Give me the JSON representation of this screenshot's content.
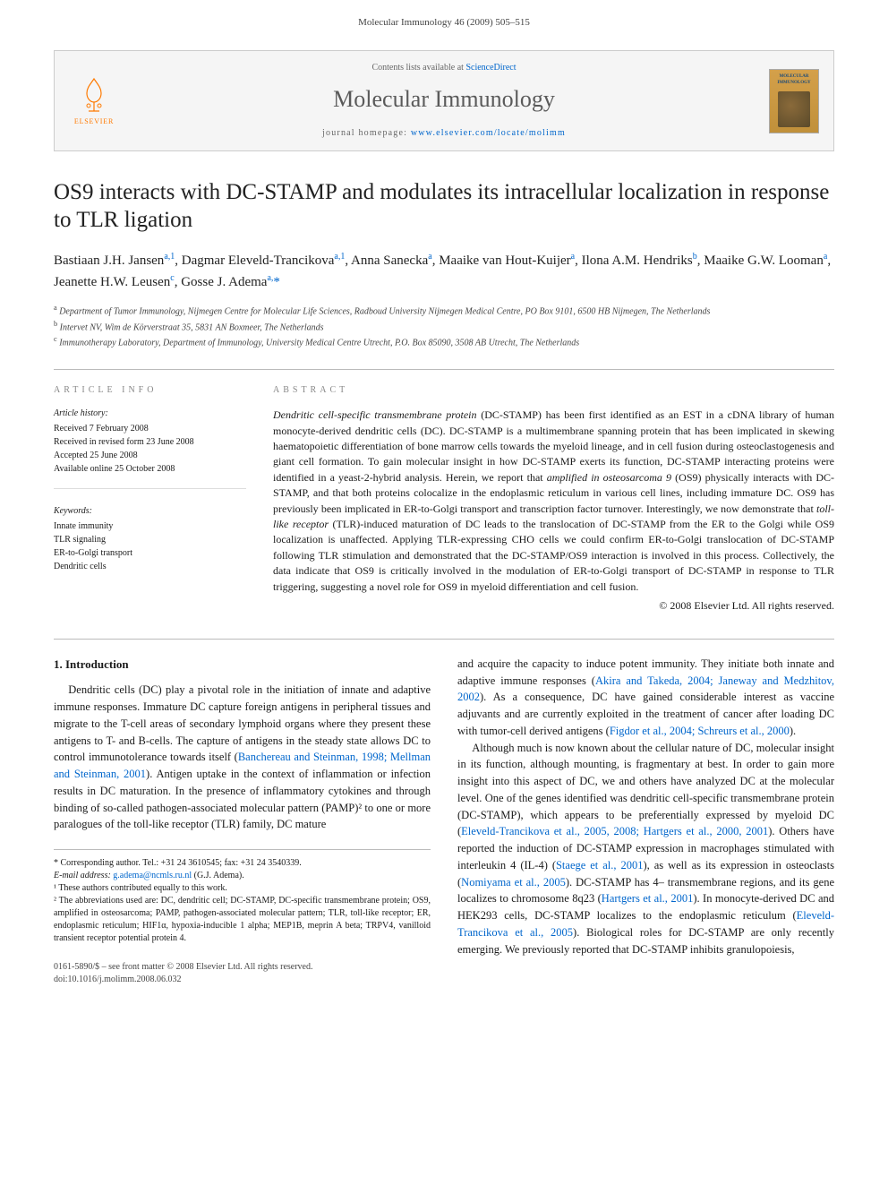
{
  "header": {
    "citation": "Molecular Immunology 46 (2009) 505–515"
  },
  "banner": {
    "contents_prefix": "Contents lists available at ",
    "contents_link": "ScienceDirect",
    "journal_name": "Molecular Immunology",
    "homepage_prefix": "journal homepage: ",
    "homepage_url": "www.elsevier.com/locate/molimm",
    "publisher_label": "ELSEVIER",
    "cover_title": "MOLECULAR IMMUNOLOGY"
  },
  "article": {
    "title": "OS9 interacts with DC-STAMP and modulates its intracellular localization in response to TLR ligation",
    "authors_html": "Bastiaan J.H. Jansen<sup>a,1</sup>, Dagmar Eleveld-Trancikova<sup>a,1</sup>, Anna Sanecka<sup>a</sup>, Maaike van Hout-Kuijer<sup>a</sup>, Ilona A.M. Hendriks<sup>b</sup>, Maaike G.W. Looman<sup>a</sup>, Jeanette H.W. Leusen<sup>c</sup>, Gosse J. Adema<sup>a,</sup><span class=\"star\">*</span>",
    "affiliations": [
      "a Department of Tumor Immunology, Nijmegen Centre for Molecular Life Sciences, Radboud University Nijmegen Medical Centre, PO Box 9101, 6500 HB Nijmegen, The Netherlands",
      "b Intervet NV, Wim de Körverstraat 35, 5831 AN Boxmeer, The Netherlands",
      "c Immunotherapy Laboratory, Department of Immunology, University Medical Centre Utrecht, P.O. Box 85090, 3508 AB Utrecht, The Netherlands"
    ]
  },
  "info": {
    "heading": "ARTICLE INFO",
    "history_label": "Article history:",
    "history": [
      "Received 7 February 2008",
      "Received in revised form 23 June 2008",
      "Accepted 25 June 2008",
      "Available online 25 October 2008"
    ],
    "keywords_label": "Keywords:",
    "keywords": [
      "Innate immunity",
      "TLR signaling",
      "ER-to-Golgi transport",
      "Dendritic cells"
    ]
  },
  "abstract": {
    "heading": "ABSTRACT",
    "text": "Dendritic cell-specific transmembrane protein (DC-STAMP) has been first identified as an EST in a cDNA library of human monocyte-derived dendritic cells (DC). DC-STAMP is a multimembrane spanning protein that has been implicated in skewing haematopoietic differentiation of bone marrow cells towards the myeloid lineage, and in cell fusion during osteoclastogenesis and giant cell formation. To gain molecular insight in how DC-STAMP exerts its function, DC-STAMP interacting proteins were identified in a yeast-2-hybrid analysis. Herein, we report that amplified in osteosarcoma 9 (OS9) physically interacts with DC-STAMP, and that both proteins colocalize in the endoplasmic reticulum in various cell lines, including immature DC. OS9 has previously been implicated in ER-to-Golgi transport and transcription factor turnover. Interestingly, we now demonstrate that toll-like receptor (TLR)-induced maturation of DC leads to the translocation of DC-STAMP from the ER to the Golgi while OS9 localization is unaffected. Applying TLR-expressing CHO cells we could confirm ER-to-Golgi translocation of DC-STAMP following TLR stimulation and demonstrated that the DC-STAMP/OS9 interaction is involved in this process. Collectively, the data indicate that OS9 is critically involved in the modulation of ER-to-Golgi transport of DC-STAMP in response to TLR triggering, suggesting a novel role for OS9 in myeloid differentiation and cell fusion.",
    "copyright": "© 2008 Elsevier Ltd. All rights reserved."
  },
  "intro": {
    "heading": "1. Introduction",
    "col1_p1": "Dendritic cells (DC) play a pivotal role in the initiation of innate and adaptive immune responses. Immature DC capture foreign antigens in peripheral tissues and migrate to the T-cell areas of secondary lymphoid organs where they present these antigens to T- and B-cells. The capture of antigens in the steady state allows DC to control immunotolerance towards itself (",
    "col1_ref1": "Banchereau and Steinman, 1998; Mellman and Steinman, 2001",
    "col1_p1b": "). Antigen uptake in the context of inflammation or infection results in DC maturation. In the presence of inflammatory cytokines and through binding of so-called pathogen-associated molecular pattern (PAMP)² to one or more paralogues of the toll-like receptor (TLR) family, DC mature",
    "col2_p1a": "and acquire the capacity to induce potent immunity. They initiate both innate and adaptive immune responses (",
    "col2_ref1": "Akira and Takeda, 2004; Janeway and Medzhitov, 2002",
    "col2_p1b": "). As a consequence, DC have gained considerable interest as vaccine adjuvants and are currently exploited in the treatment of cancer after loading DC with tumor-cell derived antigens (",
    "col2_ref2": "Figdor et al., 2004; Schreurs et al., 2000",
    "col2_p1c": ").",
    "col2_p2a": "Although much is now known about the cellular nature of DC, molecular insight in its function, although mounting, is fragmentary at best. In order to gain more insight into this aspect of DC, we and others have analyzed DC at the molecular level. One of the genes identified was dendritic cell-specific transmembrane protein (DC-STAMP), which appears to be preferentially expressed by myeloid DC (",
    "col2_ref3": "Eleveld-Trancikova et al., 2005, 2008; Hartgers et al., 2000, 2001",
    "col2_p2b": "). Others have reported the induction of DC-STAMP expression in macrophages stimulated with interleukin 4 (IL-4) (",
    "col2_ref4": "Staege et al., 2001",
    "col2_p2c": "), as well as its expression in osteoclasts (",
    "col2_ref5": "Nomiyama et al., 2005",
    "col2_p2d": "). DC-STAMP has 4– transmembrane regions, and its gene localizes to chromosome 8q23 (",
    "col2_ref6": "Hartgers et al., 2001",
    "col2_p2e": "). In monocyte-derived DC and HEK293 cells, DC-STAMP localizes to the endoplasmic reticulum (",
    "col2_ref7": "Eleveld-Trancikova et al., 2005",
    "col2_p2f": "). Biological roles for DC-STAMP are only recently emerging. We previously reported that DC-STAMP inhibits granulopoiesis,"
  },
  "footnotes": {
    "corr": "* Corresponding author. Tel.: +31 24 3610545; fax: +31 24 3540339.",
    "email_label": "E-mail address: ",
    "email": "g.adema@ncmls.ru.nl",
    "email_suffix": " (G.J. Adema).",
    "note1": "¹ These authors contributed equally to this work.",
    "note2": "² The abbreviations used are: DC, dendritic cell; DC-STAMP, DC-specific transmembrane protein; OS9, amplified in osteosarcoma; PAMP, pathogen-associated molecular pattern; TLR, toll-like receptor; ER, endoplasmic reticulum; HIF1α, hypoxia-inducible 1 alpha; MEP1B, meprin A beta; TRPV4, vanilloid transient receptor potential protein 4."
  },
  "footer": {
    "line1": "0161-5890/$ – see front matter © 2008 Elsevier Ltd. All rights reserved.",
    "line2": "doi:10.1016/j.molimm.2008.06.032"
  },
  "colors": {
    "link": "#0066cc",
    "elsevier_orange": "#ff7a00",
    "banner_bg": "#f5f5f5",
    "rule": "#bbbbbb"
  }
}
